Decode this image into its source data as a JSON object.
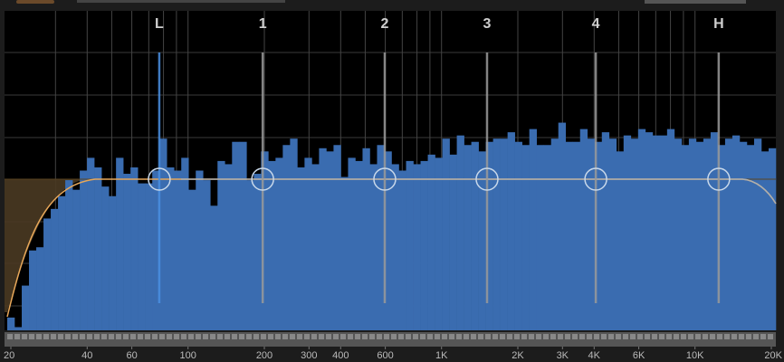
{
  "frequency_axis": {
    "xlim": [
      20,
      20000
    ],
    "ticks": [
      20,
      40,
      60,
      100,
      200,
      300,
      400,
      600,
      {
        "value": 1000,
        "label": "1K"
      },
      {
        "value": 2000,
        "label": "2K"
      },
      {
        "value": 3000,
        "label": "3K"
      },
      {
        "value": 4000,
        "label": "4K"
      },
      {
        "value": 6000,
        "label": "6K"
      },
      {
        "value": 10000,
        "label": "10K"
      },
      {
        "value": 20000,
        "label": "20K"
      }
    ],
    "gridlines": [
      30,
      40,
      50,
      60,
      70,
      80,
      90,
      100,
      200,
      300,
      400,
      500,
      600,
      700,
      800,
      900,
      1000,
      2000,
      3000,
      4000,
      5000,
      6000,
      7000,
      8000,
      9000,
      10000
    ]
  },
  "bands": [
    {
      "label": "L",
      "freq": 77,
      "color": "#4a90e2"
    },
    {
      "label": "1",
      "freq": 197,
      "color": "#9a9a9a"
    },
    {
      "label": "2",
      "freq": 597,
      "color": "#9a9a9a"
    },
    {
      "label": "3",
      "freq": 1512,
      "color": "#9a9a9a"
    },
    {
      "label": "4",
      "freq": 4060,
      "color": "#9a9a9a"
    },
    {
      "label": "H",
      "freq": 12400,
      "color": "#9a9a9a"
    }
  ],
  "spectrum": {
    "ylim": [
      0,
      100
    ],
    "color": "#3a6cb0",
    "levels": [
      4,
      1,
      14,
      25,
      26,
      35,
      38,
      42,
      47,
      44,
      50,
      54,
      51,
      45,
      42,
      54,
      49,
      51,
      46,
      46,
      50,
      60,
      51,
      50,
      54,
      44,
      50,
      47,
      39,
      53,
      52,
      59,
      59,
      47,
      49,
      56,
      53,
      54,
      58,
      60,
      51,
      54,
      52,
      57,
      56,
      58,
      48,
      54,
      53,
      57,
      52,
      58,
      56,
      52,
      50,
      53,
      52,
      53,
      55,
      54,
      60,
      55,
      61,
      58,
      59,
      56,
      59,
      60,
      60,
      62,
      59,
      58,
      63,
      58,
      58,
      60,
      65,
      59,
      59,
      63,
      60,
      59,
      62,
      60,
      56,
      61,
      60,
      63,
      62,
      61,
      61,
      63,
      60,
      58,
      60,
      59,
      60,
      62,
      58,
      60,
      61,
      59,
      58,
      60,
      56,
      57
    ]
  }
}
